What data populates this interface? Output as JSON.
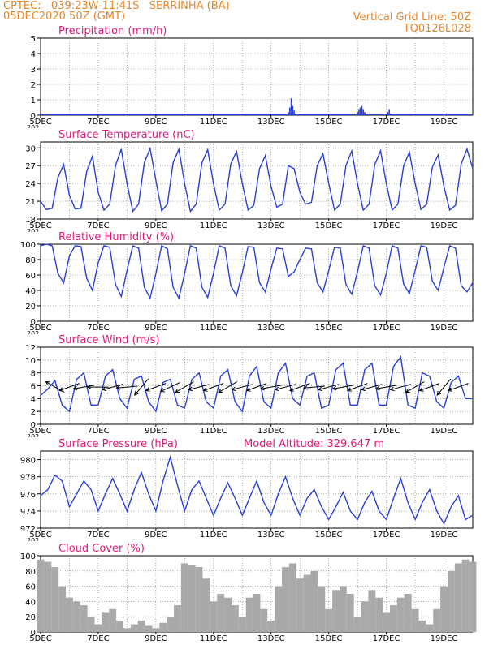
{
  "header": {
    "left_line1": "CPTEC:   039:23W-11:41S   SERRINHA (BA)",
    "left_line2": "05DEC2020 50Z (GMT)",
    "right_line1": "Vertical Grid Line: 50Z",
    "right_line2": "TQ0126L028"
  },
  "colors": {
    "header": "#e8862a",
    "title": "#e0197a",
    "line": "#2a3fd6",
    "cloud": "#a9a9a9",
    "grid": "#777777"
  },
  "x_axis": {
    "labels": [
      "5DEC",
      "7DEC",
      "9DEC",
      "11DEC",
      "13DEC",
      "15DEC",
      "17DEC",
      "19DEC"
    ],
    "label_days": [
      5,
      7,
      9,
      11,
      13,
      15,
      17,
      19
    ],
    "year_fragment": "202",
    "start_day": 5,
    "end_day": 20
  },
  "chart_data": [
    {
      "type": "bar",
      "title": "Precipitation (mm/h)",
      "ylim": [
        0,
        5
      ],
      "yticks": [
        0,
        1,
        2,
        3,
        4,
        5
      ],
      "x": [
        13.6,
        13.65,
        13.7,
        13.75,
        13.8,
        13.85,
        16.0,
        16.05,
        16.1,
        16.15,
        16.2,
        16.25,
        17.05,
        17.1,
        17.15
      ],
      "values": [
        0.2,
        0.5,
        1.1,
        0.6,
        0.3,
        0.1,
        0.2,
        0.4,
        0.5,
        0.6,
        0.4,
        0.2,
        0.2,
        0.4,
        0.1
      ]
    },
    {
      "type": "line",
      "title": "Surface Temperature (nC)",
      "ylim": [
        18,
        31
      ],
      "yticks": [
        18,
        21,
        24,
        27,
        30
      ],
      "x": [
        5.0,
        5.2,
        5.4,
        5.6,
        5.8,
        6.0,
        6.2,
        6.4,
        6.6,
        6.8,
        7.0,
        7.2,
        7.4,
        7.6,
        7.8,
        8.0,
        8.2,
        8.4,
        8.6,
        8.8,
        9.0,
        9.2,
        9.4,
        9.6,
        9.8,
        10.0,
        10.2,
        10.4,
        10.6,
        10.8,
        11.0,
        11.2,
        11.4,
        11.6,
        11.8,
        12.0,
        12.2,
        12.4,
        12.6,
        12.8,
        13.0,
        13.2,
        13.4,
        13.6,
        13.8,
        14.0,
        14.2,
        14.4,
        14.6,
        14.8,
        15.0,
        15.2,
        15.4,
        15.6,
        15.8,
        16.0,
        16.2,
        16.4,
        16.6,
        16.8,
        17.0,
        17.2,
        17.4,
        17.6,
        17.8,
        18.0,
        18.2,
        18.4,
        18.6,
        18.8,
        19.0,
        19.2,
        19.4,
        19.6,
        19.8,
        20.0
      ],
      "values": [
        21,
        19.6,
        19.8,
        25,
        27.2,
        22,
        19.7,
        19.8,
        26,
        28.6,
        22.5,
        19.5,
        20.5,
        27,
        29.8,
        24,
        19.3,
        20.5,
        27.5,
        29.9,
        24.5,
        19.4,
        20.5,
        27.5,
        29.8,
        24,
        19.3,
        20.5,
        27.5,
        29.7,
        24,
        19.5,
        20.5,
        27.3,
        29.4,
        24,
        19.5,
        20.3,
        26.5,
        28.7,
        23.5,
        20,
        20.5,
        27,
        26.5,
        22.5,
        20.5,
        20.8,
        27,
        29,
        24,
        19.5,
        20.5,
        27,
        29.5,
        24,
        19.5,
        20.5,
        27.2,
        29.5,
        24,
        19.5,
        20.5,
        27,
        29.3,
        24,
        19.6,
        20.5,
        26.8,
        28.8,
        23.5,
        19.5,
        20.3,
        27.3,
        29.8,
        26.5
      ]
    },
    {
      "type": "line",
      "title": "Relative Humidity (%)",
      "ylim": [
        0,
        100
      ],
      "yticks": [
        0,
        20,
        40,
        60,
        80,
        100
      ],
      "x": [
        5.0,
        5.2,
        5.4,
        5.6,
        5.8,
        6.0,
        6.2,
        6.4,
        6.6,
        6.8,
        7.0,
        7.2,
        7.4,
        7.6,
        7.8,
        8.0,
        8.2,
        8.4,
        8.6,
        8.8,
        9.0,
        9.2,
        9.4,
        9.6,
        9.8,
        10.0,
        10.2,
        10.4,
        10.6,
        10.8,
        11.0,
        11.2,
        11.4,
        11.6,
        11.8,
        12.0,
        12.2,
        12.4,
        12.6,
        12.8,
        13.0,
        13.2,
        13.4,
        13.6,
        13.8,
        14.0,
        14.2,
        14.4,
        14.6,
        14.8,
        15.0,
        15.2,
        15.4,
        15.6,
        15.8,
        16.0,
        16.2,
        16.4,
        16.6,
        16.8,
        17.0,
        17.2,
        17.4,
        17.6,
        17.8,
        18.0,
        18.2,
        18.4,
        18.6,
        18.8,
        19.0,
        19.2,
        19.4,
        19.6,
        19.8,
        20.0
      ],
      "values": [
        98,
        100,
        98,
        62,
        50,
        85,
        98,
        97,
        56,
        40,
        76,
        98,
        96,
        48,
        32,
        66,
        98,
        95,
        44,
        30,
        62,
        98,
        94,
        44,
        30,
        62,
        98,
        95,
        44,
        31,
        62,
        98,
        95,
        46,
        33,
        63,
        97,
        96,
        50,
        38,
        68,
        95,
        94,
        58,
        64,
        80,
        95,
        94,
        50,
        38,
        66,
        96,
        95,
        48,
        35,
        64,
        98,
        95,
        46,
        34,
        62,
        98,
        95,
        48,
        36,
        66,
        98,
        96,
        52,
        40,
        70,
        98,
        95,
        46,
        38,
        50
      ]
    },
    {
      "type": "line",
      "title": "Surface Wind (m/s)",
      "ylim": [
        0,
        12
      ],
      "yticks": [
        0,
        2,
        4,
        6,
        8,
        10,
        12
      ],
      "x": [
        5.0,
        5.25,
        5.5,
        5.75,
        6.0,
        6.25,
        6.5,
        6.75,
        7.0,
        7.25,
        7.5,
        7.75,
        8.0,
        8.25,
        8.5,
        8.75,
        9.0,
        9.25,
        9.5,
        9.75,
        10.0,
        10.25,
        10.5,
        10.75,
        11.0,
        11.25,
        11.5,
        11.75,
        12.0,
        12.25,
        12.5,
        12.75,
        13.0,
        13.25,
        13.5,
        13.75,
        14.0,
        14.25,
        14.5,
        14.75,
        15.0,
        15.25,
        15.5,
        15.75,
        16.0,
        16.25,
        16.5,
        16.75,
        17.0,
        17.25,
        17.5,
        17.75,
        18.0,
        18.25,
        18.5,
        18.75,
        19.0,
        19.25,
        19.5,
        19.75,
        20.0
      ],
      "values": [
        4.5,
        5.5,
        6.8,
        3.0,
        2.0,
        7.0,
        8.0,
        3.0,
        3.0,
        7.5,
        8.5,
        4.0,
        2.5,
        7.0,
        7.5,
        3.5,
        2.0,
        6.5,
        7.0,
        3.0,
        2.5,
        7.0,
        8.0,
        3.5,
        2.5,
        7.5,
        8.5,
        3.5,
        2.0,
        7.5,
        9.0,
        3.5,
        2.5,
        8.0,
        9.5,
        4.0,
        3.0,
        7.5,
        8.0,
        2.5,
        3.0,
        8.5,
        9.5,
        3.0,
        3.0,
        8.5,
        9.5,
        3.0,
        3.0,
        9.0,
        10.5,
        3.0,
        2.5,
        8.0,
        7.5,
        3.5,
        2.5,
        6.5,
        7.5,
        4.0,
        4.0
      ]
    },
    {
      "type": "line",
      "title": "Surface Pressure (hPa)",
      "ylim": [
        972,
        981
      ],
      "yticks": [
        972,
        974,
        976,
        978,
        980
      ],
      "x": [
        5.0,
        5.25,
        5.5,
        5.75,
        6.0,
        6.25,
        6.5,
        6.75,
        7.0,
        7.25,
        7.5,
        7.75,
        8.0,
        8.25,
        8.5,
        8.75,
        9.0,
        9.25,
        9.5,
        9.75,
        10.0,
        10.25,
        10.5,
        10.75,
        11.0,
        11.25,
        11.5,
        11.75,
        12.0,
        12.25,
        12.5,
        12.75,
        13.0,
        13.25,
        13.5,
        13.75,
        14.0,
        14.25,
        14.5,
        14.75,
        15.0,
        15.25,
        15.5,
        15.75,
        16.0,
        16.25,
        16.5,
        16.75,
        17.0,
        17.25,
        17.5,
        17.75,
        18.0,
        18.25,
        18.5,
        18.75,
        19.0,
        19.25,
        19.5,
        19.75,
        20.0
      ],
      "values": [
        975.8,
        976.5,
        978.2,
        977.5,
        974.5,
        976.0,
        977.5,
        976.5,
        974.0,
        976.0,
        977.8,
        976.0,
        974.0,
        976.5,
        978.5,
        976.0,
        974.0,
        977.5,
        980.3,
        977.0,
        974.0,
        976.5,
        977.5,
        975.5,
        973.5,
        975.5,
        977.3,
        975.5,
        973.5,
        975.5,
        977.5,
        975.0,
        973.5,
        976.0,
        978.0,
        975.5,
        973.5,
        975.5,
        976.5,
        974.5,
        973.0,
        974.5,
        976.2,
        974.0,
        973.0,
        975.0,
        976.3,
        974.0,
        973.0,
        975.5,
        977.8,
        975.0,
        973.0,
        975.0,
        976.5,
        974.0,
        972.5,
        974.5,
        975.8,
        973.0,
        973.5
      ]
    },
    {
      "type": "bar",
      "title": "Cloud Cover (%)",
      "ylim": [
        0,
        100
      ],
      "yticks": [
        0,
        20,
        40,
        60,
        80,
        100
      ],
      "x": [
        5.0,
        5.25,
        5.5,
        5.75,
        6.0,
        6.25,
        6.5,
        6.75,
        7.0,
        7.25,
        7.5,
        7.75,
        8.0,
        8.25,
        8.5,
        8.75,
        9.0,
        9.25,
        9.5,
        9.75,
        10.0,
        10.25,
        10.5,
        10.75,
        11.0,
        11.25,
        11.5,
        11.75,
        12.0,
        12.25,
        12.5,
        12.75,
        13.0,
        13.25,
        13.5,
        13.75,
        14.0,
        14.25,
        14.5,
        14.75,
        15.0,
        15.25,
        15.5,
        15.75,
        16.0,
        16.25,
        16.5,
        16.75,
        17.0,
        17.25,
        17.5,
        17.75,
        18.0,
        18.25,
        18.5,
        18.75,
        19.0,
        19.25,
        19.5,
        19.75,
        20.0
      ],
      "values": [
        95,
        92,
        85,
        60,
        45,
        40,
        35,
        20,
        10,
        25,
        30,
        15,
        5,
        10,
        15,
        8,
        5,
        12,
        20,
        35,
        90,
        88,
        85,
        70,
        40,
        50,
        45,
        35,
        20,
        45,
        50,
        30,
        15,
        60,
        85,
        90,
        70,
        75,
        80,
        60,
        30,
        55,
        60,
        50,
        20,
        40,
        55,
        45,
        25,
        35,
        45,
        50,
        30,
        15,
        10,
        30,
        60,
        80,
        90,
        95,
        92
      ]
    }
  ],
  "panels": [
    {
      "title": "Precipitation (mm/h)"
    },
    {
      "title": "Surface Temperature (nC)"
    },
    {
      "title": "Relative Humidity (%)"
    },
    {
      "title": "Surface Wind (m/s)"
    },
    {
      "title": "Surface Pressure (hPa)",
      "extra": "Model Altitude: 329.647 m"
    },
    {
      "title": "Cloud Cover (%)"
    }
  ],
  "wind_vectors": {
    "x": [
      5.5,
      6.0,
      6.5,
      7.0,
      7.5,
      8.0,
      8.5,
      9.0,
      9.5,
      10.0,
      10.5,
      11.0,
      11.5,
      12.0,
      12.5,
      13.0,
      13.5,
      14.0,
      14.5,
      15.0,
      15.5,
      16.0,
      16.5,
      17.0,
      17.5,
      18.0,
      18.5,
      19.0,
      19.5
    ],
    "angle_deg": [
      150,
      200,
      190,
      180,
      195,
      185,
      230,
      200,
      205,
      210,
      195,
      200,
      210,
      195,
      200,
      190,
      195,
      200,
      185,
      195,
      190,
      200,
      195,
      190,
      195,
      210,
      200,
      230,
      200
    ]
  }
}
